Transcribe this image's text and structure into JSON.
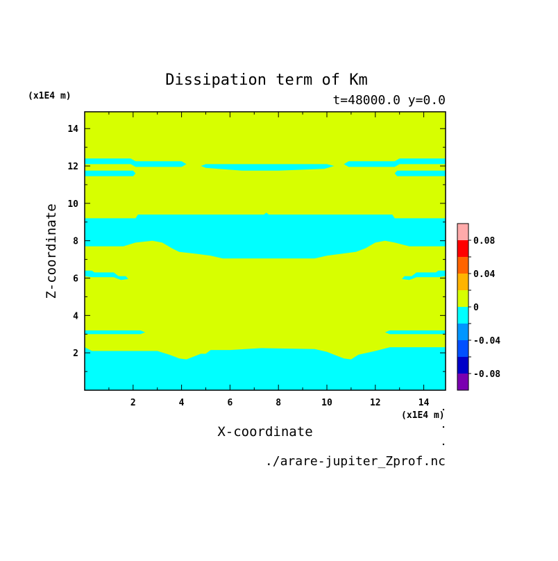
{
  "chart_data": {
    "type": "heatmap",
    "title": "Dissipation term of Km",
    "subtitle": "t=48000.0 y=0.0",
    "xlabel": "X-coordinate",
    "ylabel": "Z-coordinate",
    "x_unit": "(x1E4 m)",
    "y_unit": "(x1E4 m)",
    "footer": "./arare-jupiter_Zprof.nc",
    "xlim": [
      0,
      14.9
    ],
    "ylim": [
      0,
      14.9
    ],
    "x_ticks": [
      2,
      4,
      6,
      8,
      10,
      12,
      14
    ],
    "y_ticks": [
      2,
      4,
      6,
      8,
      10,
      12,
      14
    ],
    "colors": {
      "zero_to_pos": "#d7ff00",
      "neg_to_zero": "#00ffff"
    },
    "regions": [
      {
        "level": "neg",
        "polygon": [
          [
            0,
            0
          ],
          [
            14.9,
            0
          ],
          [
            14.9,
            2.3
          ],
          [
            12.6,
            2.3
          ],
          [
            12,
            2.1
          ],
          [
            11.3,
            1.9
          ],
          [
            11,
            1.65
          ],
          [
            10.7,
            1.7
          ],
          [
            10.4,
            1.85
          ],
          [
            10,
            2.05
          ],
          [
            9.5,
            2.2
          ],
          [
            7.3,
            2.25
          ],
          [
            6,
            2.15
          ],
          [
            5.2,
            2.15
          ],
          [
            5,
            1.95
          ],
          [
            4.8,
            1.95
          ],
          [
            4.5,
            1.8
          ],
          [
            4.2,
            1.65
          ],
          [
            3.9,
            1.7
          ],
          [
            3.5,
            1.9
          ],
          [
            3,
            2.1
          ],
          [
            0.3,
            2.1
          ],
          [
            0,
            2.3
          ]
        ]
      },
      {
        "level": "neg",
        "polygon": [
          [
            0,
            3.2
          ],
          [
            2.3,
            3.2
          ],
          [
            2.5,
            3.1
          ],
          [
            2.3,
            3.0
          ],
          [
            0,
            3.0
          ]
        ]
      },
      {
        "level": "neg",
        "polygon": [
          [
            14.9,
            3.2
          ],
          [
            12.6,
            3.2
          ],
          [
            12.4,
            3.1
          ],
          [
            12.6,
            3.0
          ],
          [
            14.9,
            3.0
          ]
        ]
      },
      {
        "level": "neg",
        "polygon": [
          [
            0,
            6.4
          ],
          [
            0.3,
            6.4
          ],
          [
            0.4,
            6.3
          ],
          [
            1.2,
            6.3
          ],
          [
            1.4,
            6.1
          ],
          [
            1.7,
            6.1
          ],
          [
            1.8,
            5.95
          ],
          [
            1.5,
            5.9
          ],
          [
            1.2,
            6.05
          ],
          [
            0.3,
            6.05
          ],
          [
            0,
            6.1
          ]
        ]
      },
      {
        "level": "neg",
        "polygon": [
          [
            14.9,
            6.4
          ],
          [
            14.6,
            6.4
          ],
          [
            14.5,
            6.3
          ],
          [
            13.7,
            6.3
          ],
          [
            13.5,
            6.1
          ],
          [
            13.2,
            6.1
          ],
          [
            13.1,
            5.95
          ],
          [
            13.4,
            5.9
          ],
          [
            13.7,
            6.05
          ],
          [
            14.6,
            6.05
          ],
          [
            14.9,
            6.1
          ]
        ]
      },
      {
        "level": "neg",
        "polygon": [
          [
            0,
            9.2
          ],
          [
            2.1,
            9.2
          ],
          [
            2.2,
            9.4
          ],
          [
            7.4,
            9.4
          ],
          [
            7.5,
            9.5
          ],
          [
            7.6,
            9.4
          ],
          [
            12.7,
            9.4
          ],
          [
            12.8,
            9.2
          ],
          [
            14.9,
            9.2
          ],
          [
            14.9,
            7.7
          ],
          [
            13.4,
            7.7
          ],
          [
            12.8,
            7.9
          ],
          [
            12.4,
            8.0
          ],
          [
            12,
            7.9
          ],
          [
            11.6,
            7.6
          ],
          [
            11.2,
            7.4
          ],
          [
            10.6,
            7.3
          ],
          [
            10,
            7.2
          ],
          [
            9.5,
            7.05
          ],
          [
            5.7,
            7.05
          ],
          [
            5.2,
            7.2
          ],
          [
            4.6,
            7.3
          ],
          [
            3.9,
            7.4
          ],
          [
            3.6,
            7.6
          ],
          [
            3.2,
            7.9
          ],
          [
            2.8,
            8.0
          ],
          [
            2.1,
            7.9
          ],
          [
            1.6,
            7.7
          ],
          [
            0,
            7.7
          ]
        ]
      },
      {
        "level": "neg",
        "polygon": [
          [
            0,
            12.4
          ],
          [
            1.9,
            12.4
          ],
          [
            2.1,
            12.25
          ],
          [
            4.0,
            12.25
          ],
          [
            4.2,
            12.1
          ],
          [
            4.0,
            11.95
          ],
          [
            2.1,
            11.95
          ],
          [
            1.9,
            12.1
          ],
          [
            0,
            12.1
          ]
        ]
      },
      {
        "level": "neg",
        "polygon": [
          [
            0,
            11.75
          ],
          [
            2.0,
            11.75
          ],
          [
            2.1,
            11.6
          ],
          [
            2.0,
            11.45
          ],
          [
            0,
            11.45
          ]
        ]
      },
      {
        "level": "neg",
        "polygon": [
          [
            14.9,
            12.4
          ],
          [
            13.0,
            12.4
          ],
          [
            12.8,
            12.25
          ],
          [
            10.9,
            12.25
          ],
          [
            10.7,
            12.1
          ],
          [
            10.9,
            11.95
          ],
          [
            12.8,
            11.95
          ],
          [
            13.0,
            12.1
          ],
          [
            14.9,
            12.1
          ]
        ]
      },
      {
        "level": "neg",
        "polygon": [
          [
            14.9,
            11.75
          ],
          [
            12.9,
            11.75
          ],
          [
            12.8,
            11.6
          ],
          [
            12.9,
            11.45
          ],
          [
            14.9,
            11.45
          ]
        ]
      },
      {
        "level": "neg",
        "polygon": [
          [
            5.0,
            12.1
          ],
          [
            10.0,
            12.1
          ],
          [
            10.3,
            12.0
          ],
          [
            9.9,
            11.85
          ],
          [
            8.0,
            11.75
          ],
          [
            6.5,
            11.75
          ],
          [
            5.5,
            11.85
          ],
          [
            5.0,
            11.9
          ],
          [
            4.8,
            12.0
          ]
        ]
      }
    ],
    "colorbar": {
      "ticks": [
        "0.08",
        "0.04",
        "0",
        "-0.04",
        "-0.08"
      ],
      "tick_values": [
        0.08,
        0.04,
        0,
        -0.04,
        -0.08
      ],
      "range": [
        -0.1,
        0.1
      ],
      "bands": [
        {
          "from": -0.1,
          "to": -0.08,
          "color": "#7a00b0"
        },
        {
          "from": -0.08,
          "to": -0.06,
          "color": "#0000c8"
        },
        {
          "from": -0.06,
          "to": -0.04,
          "color": "#0050ff"
        },
        {
          "from": -0.04,
          "to": -0.02,
          "color": "#0096ff"
        },
        {
          "from": -0.02,
          "to": 0,
          "color": "#00ffff"
        },
        {
          "from": 0,
          "to": 0.02,
          "color": "#d7ff00"
        },
        {
          "from": 0.02,
          "to": 0.04,
          "color": "#ffb400"
        },
        {
          "from": 0.04,
          "to": 0.06,
          "color": "#ff6400"
        },
        {
          "from": 0.06,
          "to": 0.08,
          "color": "#ff0000"
        },
        {
          "from": 0.08,
          "to": 0.1,
          "color": "#ffaaaa"
        }
      ]
    }
  }
}
